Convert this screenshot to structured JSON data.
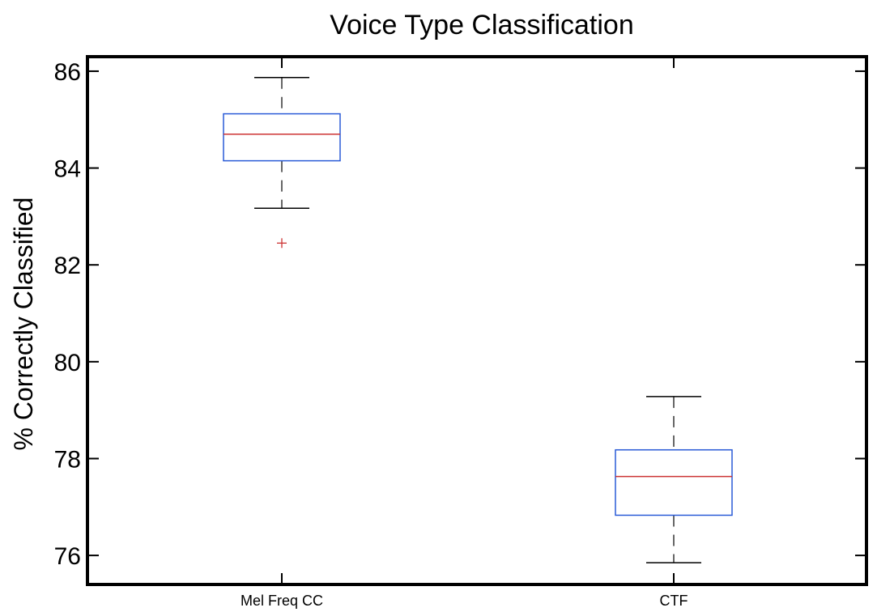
{
  "chart_data": {
    "type": "boxplot",
    "title": "Voice Type Classification",
    "xlabel": "",
    "ylabel": "% Correctly Classified",
    "ylim": [
      75.4,
      86.3
    ],
    "yticks": [
      76,
      78,
      80,
      82,
      84,
      86
    ],
    "ytick_labels": [
      "76",
      "78",
      "80",
      "82",
      "84",
      "86"
    ],
    "grid": false,
    "categories": [
      "Mel Freq CC",
      "CTF"
    ],
    "boxes": [
      {
        "category": "Mel Freq CC",
        "whisker_low": 83.17,
        "q1": 84.15,
        "median": 84.7,
        "q3": 85.12,
        "whisker_high": 85.87,
        "outliers": [
          82.45
        ]
      },
      {
        "category": "CTF",
        "whisker_low": 75.85,
        "q1": 76.83,
        "median": 77.63,
        "q3": 78.18,
        "whisker_high": 79.28,
        "outliers": []
      }
    ],
    "colors": {
      "box": "#2a5bd7",
      "median": "#cc3333",
      "whisker": "#000000",
      "outlier": "#cc3333",
      "axes": "#000000"
    }
  }
}
